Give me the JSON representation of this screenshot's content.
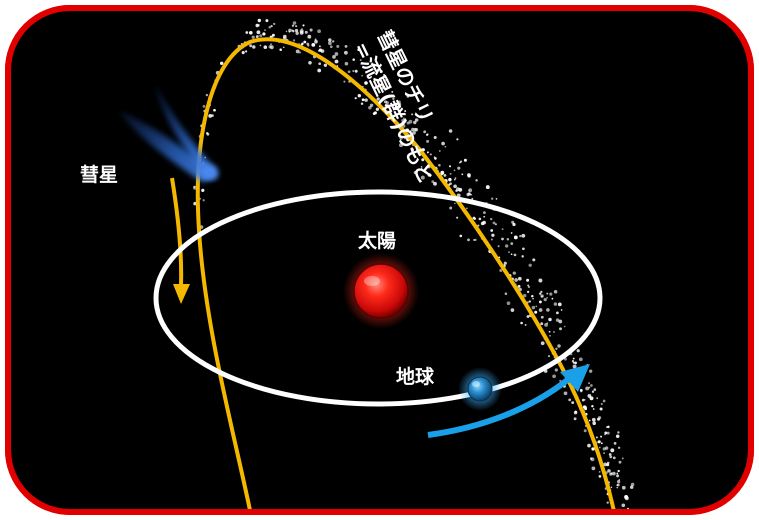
{
  "labels": {
    "comet": "彗星",
    "sun": "太陽",
    "earth": "地球",
    "dust_line1": "彗星のチリ",
    "dust_line2": "=流星(群)のもと"
  },
  "colors": {
    "frame_border": "#e00000",
    "background": "#000000",
    "earth_orbit": "#ffffff",
    "comet_orbit": "#f5b800",
    "sun": "#e01010",
    "earth": "#2a8fd0",
    "earth_motion_arrow": "#1aa0e8",
    "comet_body": "#2f6fd6",
    "dust": "#ffffff"
  },
  "icons": {
    "sun": "red-sphere",
    "earth": "blue-sphere",
    "comet": "blue-comet-streak"
  }
}
